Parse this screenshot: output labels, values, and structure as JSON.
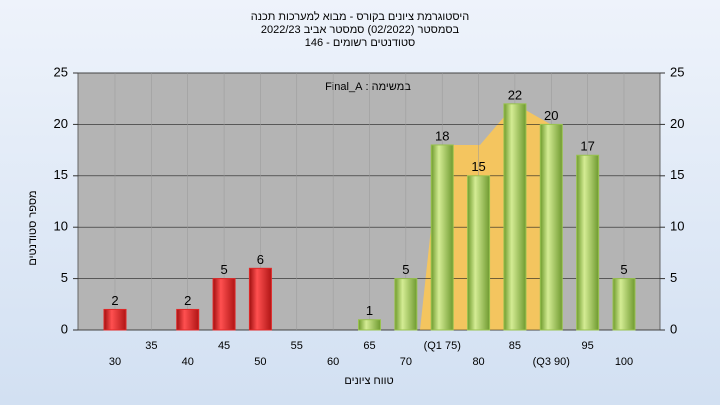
{
  "chart_data": {
    "type": "bar",
    "title": "היסטוגרמת ציונים בקורס - מבוא למערכות תכנה",
    "subtitle": "בסמסטר  (02/2022)  סמסטר אביב 2022/23",
    "note": "סטודנטים רשומים - 146",
    "annotation": "במשימה : Final_A",
    "y_label": "מספר סטודנטים",
    "x_label": "טווח ציונים",
    "categories": [
      "30",
      "35",
      "40",
      "45",
      "50",
      "55",
      "60",
      "65",
      "70",
      "(Q1 75)",
      "80",
      "85",
      "(Q3 90)",
      "95",
      "100"
    ],
    "values": [
      2,
      0,
      2,
      5,
      6,
      0,
      0,
      1,
      5,
      18,
      15,
      22,
      20,
      17,
      5
    ],
    "colors": {
      "fail": "#e02828",
      "pass": "#98c24e"
    },
    "ylim": [
      0,
      25
    ],
    "yticks": [
      0,
      5,
      10,
      15,
      20,
      25
    ],
    "grid": true
  }
}
